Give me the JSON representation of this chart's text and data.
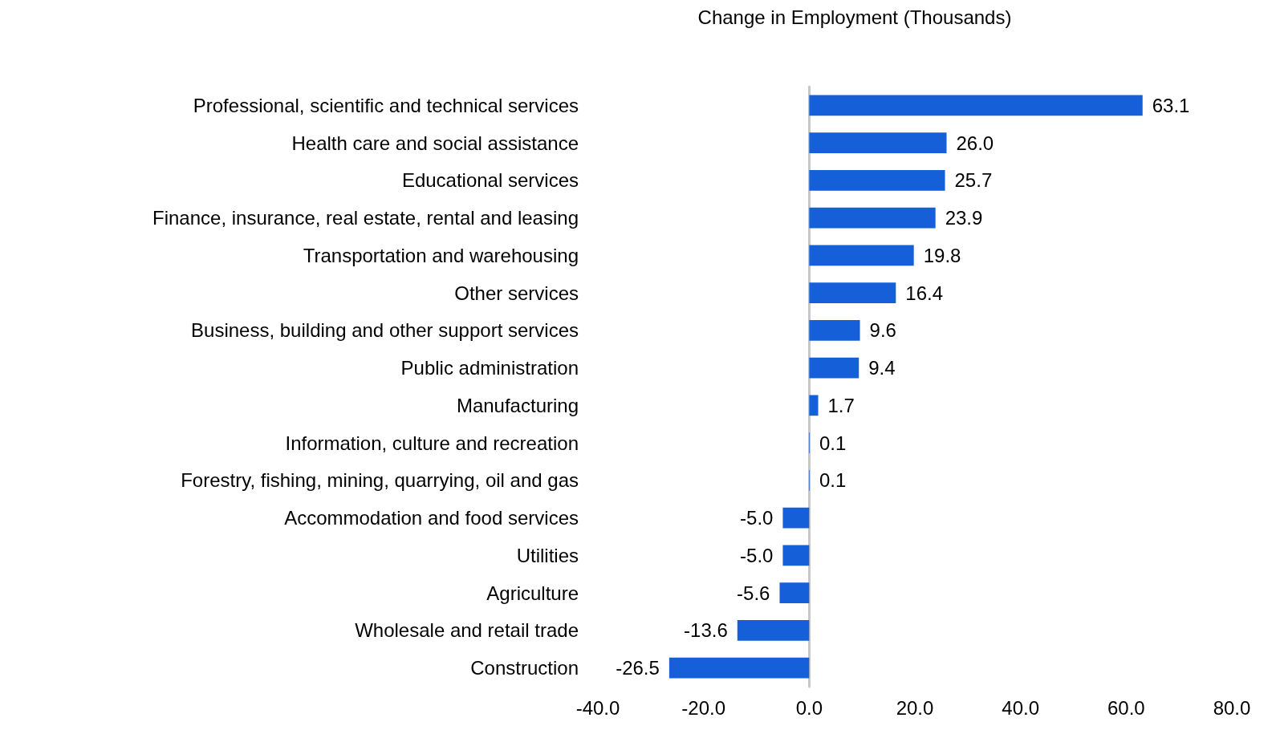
{
  "chart_data": {
    "type": "bar",
    "orientation": "horizontal",
    "title": "Change in Employment (Thousands)",
    "categories": [
      "Professional, scientific and technical services",
      "Health care and social assistance",
      "Educational services",
      "Finance, insurance, real estate, rental and leasing",
      "Transportation and warehousing",
      "Other services",
      "Business, building and other support services",
      "Public administration",
      "Manufacturing",
      "Information, culture and recreation",
      "Forestry, fishing, mining, quarrying, oil and gas",
      "Accommodation and food services",
      "Utilities",
      "Agriculture",
      "Wholesale and retail trade",
      "Construction"
    ],
    "values": [
      63.1,
      26.0,
      25.7,
      23.9,
      19.8,
      16.4,
      9.6,
      9.4,
      1.7,
      0.1,
      0.1,
      -5.0,
      -5.0,
      -5.6,
      -13.6,
      -26.5
    ],
    "value_labels": [
      "63.1",
      "26.0",
      "25.7",
      "23.9",
      "19.8",
      "16.4",
      "9.6",
      "9.4",
      "1.7",
      "0.1",
      "0.1",
      "-5.0",
      "-5.0",
      "-5.6",
      "-13.6",
      "-26.5"
    ],
    "color": "#1560d9",
    "xlim": [
      -40,
      80
    ],
    "xticks": [
      {
        "value": -40,
        "label": "-40.0"
      },
      {
        "value": -20,
        "label": "-20.0"
      },
      {
        "value": 0,
        "label": "0.0"
      },
      {
        "value": 20,
        "label": "20.0"
      },
      {
        "value": 40,
        "label": "40.0"
      },
      {
        "value": 60,
        "label": "60.0"
      },
      {
        "value": 80,
        "label": "80.0"
      }
    ]
  }
}
